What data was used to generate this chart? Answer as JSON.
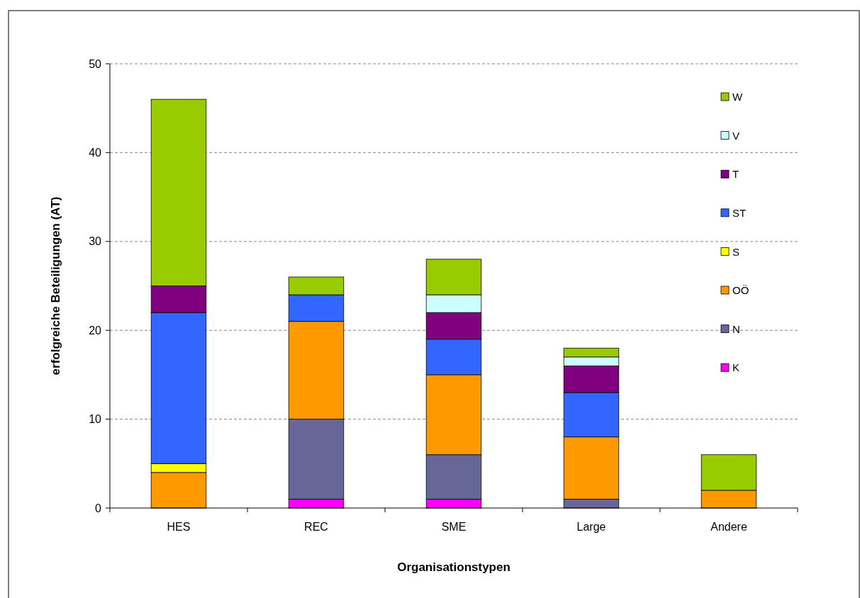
{
  "chart_data": {
    "type": "bar",
    "stacked": true,
    "xlabel": "Organisationstypen",
    "ylabel": "erfolgreiche Beteiligungen (AT)",
    "categories": [
      "HES",
      "REC",
      "SME",
      "Large",
      "Andere"
    ],
    "series": [
      {
        "name": "K",
        "color": "#ff00ff",
        "values": [
          0,
          1,
          1,
          0,
          0
        ]
      },
      {
        "name": "N",
        "color": "#666699",
        "values": [
          0,
          9,
          5,
          1,
          0
        ]
      },
      {
        "name": "OÖ",
        "color": "#ff9900",
        "values": [
          4,
          11,
          9,
          7,
          2
        ]
      },
      {
        "name": "S",
        "color": "#ffff00",
        "values": [
          1,
          0,
          0,
          0,
          0
        ]
      },
      {
        "name": "ST",
        "color": "#3366ff",
        "values": [
          17,
          3,
          4,
          5,
          0
        ]
      },
      {
        "name": "T",
        "color": "#800080",
        "values": [
          3,
          0,
          3,
          3,
          0
        ]
      },
      {
        "name": "V",
        "color": "#ccffff",
        "values": [
          0,
          0,
          2,
          1,
          0
        ]
      },
      {
        "name": "W",
        "color": "#99cc00",
        "values": [
          21,
          2,
          4,
          1,
          4
        ]
      }
    ],
    "ylim": [
      0,
      50
    ],
    "yticks": [
      0,
      10,
      20,
      30,
      40,
      50
    ],
    "grid": "y",
    "legend": "top right"
  }
}
